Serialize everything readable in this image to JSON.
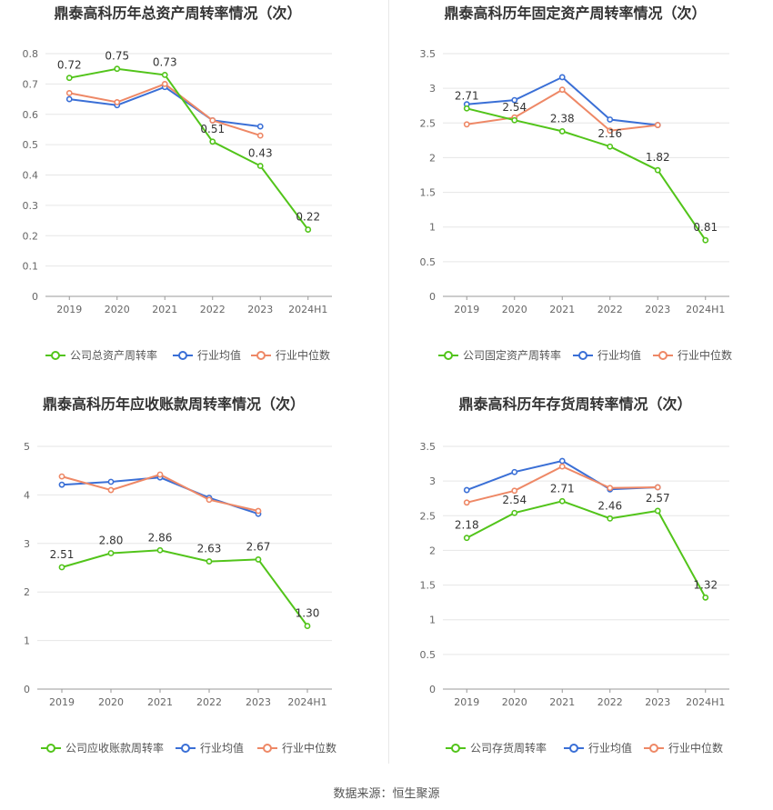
{
  "source": "数据来源：恒生聚源",
  "colors": {
    "company": "#52c41a",
    "industry_avg": "#3a6fd6",
    "industry_median": "#ee8866",
    "grid": "#e6e6e6",
    "axis_text": "#666666",
    "title": "#333333"
  },
  "chart_data": [
    {
      "type": "line",
      "title": "鼎泰高科历年总资产周转率情况（次）",
      "categories": [
        "2019",
        "2020",
        "2021",
        "2022",
        "2023",
        "2024H1"
      ],
      "ylim": [
        0,
        0.8
      ],
      "yticks": [
        "0",
        "0.1",
        "0.2",
        "0.3",
        "0.4",
        "0.5",
        "0.6",
        "0.7",
        "0.8"
      ],
      "series": [
        {
          "name": "公司总资产周转率",
          "color": "#52c41a",
          "values": [
            0.72,
            0.75,
            0.73,
            0.51,
            0.43,
            0.22
          ],
          "labels": [
            "0.72",
            "0.75",
            "0.73",
            "0.51",
            "0.43",
            "0.22"
          ]
        },
        {
          "name": "行业均值",
          "color": "#3a6fd6",
          "values": [
            0.65,
            0.63,
            0.69,
            0.58,
            0.56,
            null
          ]
        },
        {
          "name": "行业中位数",
          "color": "#ee8866",
          "values": [
            0.67,
            0.64,
            0.7,
            0.58,
            0.53,
            null
          ]
        }
      ]
    },
    {
      "type": "line",
      "title": "鼎泰高科历年固定资产周转率情况（次）",
      "categories": [
        "2019",
        "2020",
        "2021",
        "2022",
        "2023",
        "2024H1"
      ],
      "ylim": [
        0,
        3.5
      ],
      "yticks": [
        "0",
        "0.5",
        "1",
        "1.5",
        "2",
        "2.5",
        "3",
        "3.5"
      ],
      "series": [
        {
          "name": "公司固定资产周转率",
          "color": "#52c41a",
          "values": [
            2.71,
            2.54,
            2.38,
            2.16,
            1.82,
            0.81
          ],
          "labels": [
            "2.71",
            "2.54",
            "2.38",
            "2.16",
            "1.82",
            "0.81"
          ]
        },
        {
          "name": "行业均值",
          "color": "#3a6fd6",
          "values": [
            2.77,
            2.83,
            3.16,
            2.55,
            2.47,
            null
          ]
        },
        {
          "name": "行业中位数",
          "color": "#ee8866",
          "values": [
            2.48,
            2.58,
            2.98,
            2.39,
            2.47,
            null
          ]
        }
      ]
    },
    {
      "type": "line",
      "title": "鼎泰高科历年应收账款周转率情况（次）",
      "categories": [
        "2019",
        "2020",
        "2021",
        "2022",
        "2023",
        "2024H1"
      ],
      "ylim": [
        0,
        5
      ],
      "yticks": [
        "0",
        "1",
        "2",
        "3",
        "4",
        "5"
      ],
      "series": [
        {
          "name": "公司应收账款周转率",
          "color": "#52c41a",
          "values": [
            2.51,
            2.8,
            2.86,
            2.63,
            2.67,
            1.3
          ],
          "labels": [
            "2.51",
            "2.80",
            "2.86",
            "2.63",
            "2.67",
            "1.30"
          ]
        },
        {
          "name": "行业均值",
          "color": "#3a6fd6",
          "values": [
            4.21,
            4.27,
            4.36,
            3.94,
            3.61,
            null
          ]
        },
        {
          "name": "行业中位数",
          "color": "#ee8866",
          "values": [
            4.38,
            4.1,
            4.42,
            3.9,
            3.67,
            null
          ]
        }
      ]
    },
    {
      "type": "line",
      "title": "鼎泰高科历年存货周转率情况（次）",
      "categories": [
        "2019",
        "2020",
        "2021",
        "2022",
        "2023",
        "2024H1"
      ],
      "ylim": [
        0,
        3.5
      ],
      "yticks": [
        "0",
        "0.5",
        "1",
        "1.5",
        "2",
        "2.5",
        "3",
        "3.5"
      ],
      "series": [
        {
          "name": "公司存货周转率",
          "color": "#52c41a",
          "values": [
            2.18,
            2.54,
            2.71,
            2.46,
            2.57,
            1.32
          ],
          "labels": [
            "2.18",
            "2.54",
            "2.71",
            "2.46",
            "2.57",
            "1.32"
          ]
        },
        {
          "name": "行业均值",
          "color": "#3a6fd6",
          "values": [
            2.87,
            3.13,
            3.29,
            2.88,
            2.91,
            null
          ]
        },
        {
          "name": "行业中位数",
          "color": "#ee8866",
          "values": [
            2.69,
            2.86,
            3.21,
            2.9,
            2.91,
            null
          ]
        }
      ]
    }
  ]
}
